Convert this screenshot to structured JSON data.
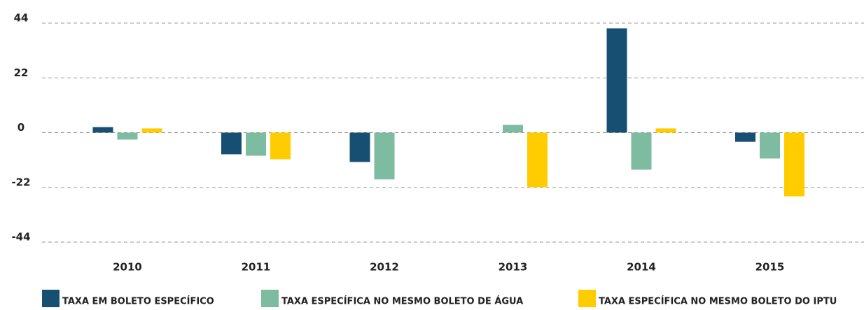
{
  "chart_data": {
    "type": "bar",
    "categories": [
      "2010",
      "2011",
      "2012",
      "2013",
      "2014",
      "2015"
    ],
    "series": [
      {
        "name": "TAXA EM BOLETO ESPECÍFICO",
        "color": "#174f73",
        "values": [
          2.2,
          -8.7,
          -11.8,
          null,
          41.9,
          -3.7
        ]
      },
      {
        "name": "TAXA ESPECÍFICA NO MESMO BOLETO DE ÁGUA",
        "color": "#7dbca0",
        "values": [
          -2.8,
          -9.3,
          -18.8,
          3.1,
          -14.9,
          -10.4
        ]
      },
      {
        "name": "TAXA ESPECÍFICA NO MESMO BOLETO DO IPTU",
        "color": "#ffcc00",
        "values": [
          1.7,
          -10.7,
          null,
          -21.9,
          1.7,
          -25.6
        ]
      }
    ],
    "ylim": [
      -44,
      44
    ],
    "yticks": [
      44,
      22,
      0,
      -22,
      -44
    ],
    "grid": true,
    "legend": "bottom"
  }
}
